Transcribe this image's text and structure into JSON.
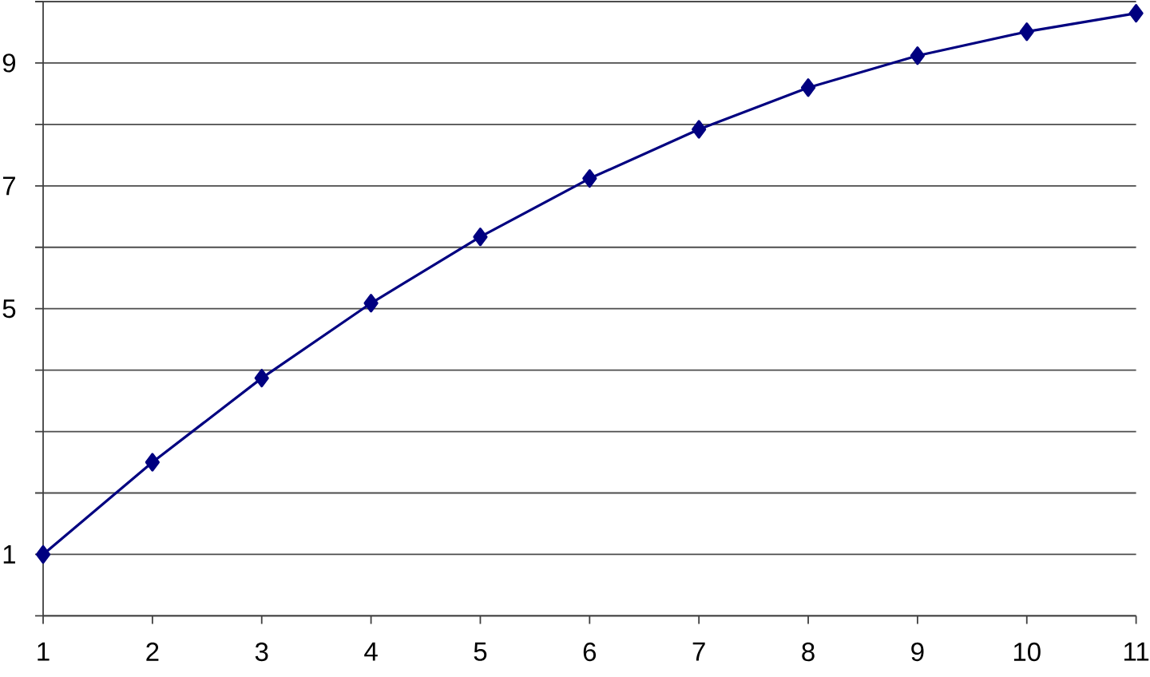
{
  "chart_data": {
    "type": "line",
    "x": [
      1,
      2,
      3,
      4,
      5,
      6,
      7,
      8,
      9,
      10,
      11
    ],
    "series": [
      {
        "color": "#000080",
        "values": [
          1,
          2.5,
          3.87,
          5.09,
          6.17,
          7.12,
          7.92,
          8.6,
          9.12,
          9.51,
          9.81
        ]
      }
    ],
    "xlim": [
      1,
      11
    ],
    "ylim": [
      0,
      10
    ],
    "xticks": [
      1,
      2,
      3,
      4,
      5,
      6,
      7,
      8,
      9,
      10,
      11
    ],
    "yticks": [
      {
        "value": 0,
        "label": null
      },
      1,
      {
        "value": 2,
        "label": null
      },
      {
        "value": 3,
        "label": null
      },
      {
        "value": 4,
        "label": null
      },
      5,
      {
        "value": 6,
        "label": null
      },
      7,
      {
        "value": 8,
        "label": null
      },
      9,
      {
        "value": 10,
        "label": null
      }
    ],
    "grid": "y",
    "marker": "diamond",
    "line_style": "solid"
  }
}
